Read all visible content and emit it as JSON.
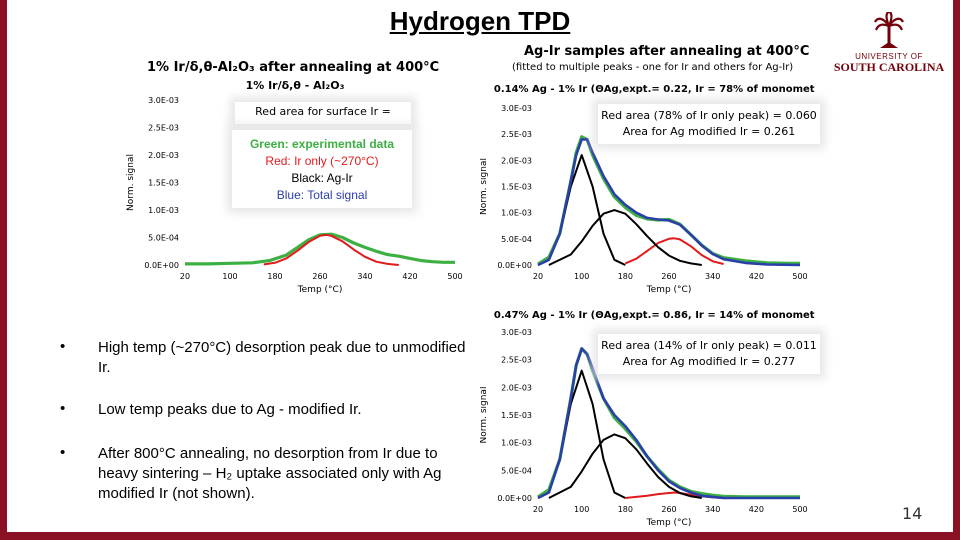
{
  "slide": {
    "title": "Hydrogen TPD",
    "page_number": "14",
    "logo": {
      "line1": "UNIVERSITY OF",
      "line2": "SOUTH CAROLINA",
      "accent": "#73000a"
    },
    "chart1_heading": "1% Ir/δ,θ-Al₂O₃ after annealing at 400°C",
    "right_heading": "Ag-Ir samples after annealing at 400°C",
    "right_subheading": "(fitted to multiple peaks - one for Ir and others for Ag-Ir)",
    "bullets": [
      "High temp (~270°C) desorption peak due to unmodified Ir.",
      "Low temp peaks due to Ag - modified Ir.",
      "After 800°C annealing, no desorption from Ir due to heavy sintering – H₂ uptake associated only with Ag modified Ir (not shown)."
    ],
    "bullet_symbol": "•"
  },
  "legend": {
    "lines": [
      "Green: experimental data",
      "Red: Ir only (~270°C)",
      "Black: Ag-Ir",
      "Blue: Total signal"
    ],
    "colors": [
      "#3cb043",
      "#e31a1c",
      "#000000",
      "#2b3fa8"
    ]
  },
  "chart_data": [
    {
      "type": "line",
      "title": "1% Ir/δ,θ - Al₂O₃",
      "annotation": "Red area for surface Ir =",
      "xlabel": "Temp (°C)",
      "ylabel": "Norm. signal",
      "xticks": [
        "20",
        "100",
        "180",
        "260",
        "340",
        "420",
        "500"
      ],
      "yticks": [
        "0.0E+00",
        "5.0E-04",
        "1.0E-03",
        "1.5E-03",
        "2.0E-03",
        "2.5E-03",
        "3.0E-03"
      ],
      "xlim": [
        20,
        500
      ],
      "ylim": [
        0,
        0.003
      ],
      "series": [
        {
          "name": "experimental",
          "color": "#3cb043",
          "x": [
            20,
            60,
            100,
            140,
            170,
            200,
            220,
            240,
            260,
            280,
            300,
            320,
            340,
            360,
            380,
            400,
            420,
            440,
            460,
            480,
            500
          ],
          "y": [
            2e-05,
            2e-05,
            3e-05,
            4e-05,
            8e-05,
            0.00018,
            0.00032,
            0.00046,
            0.00055,
            0.00056,
            0.0005,
            0.0004,
            0.00032,
            0.00025,
            0.00019,
            0.00016,
            0.00012,
            8e-05,
            6e-05,
            5e-05,
            5e-05
          ]
        },
        {
          "name": "Ir only",
          "color": "#e31a1c",
          "x": [
            160,
            180,
            200,
            220,
            240,
            260,
            270,
            280,
            300,
            320,
            340,
            360,
            380,
            400
          ],
          "y": [
            1e-05,
            4e-05,
            0.00012,
            0.00026,
            0.00042,
            0.00053,
            0.00055,
            0.00053,
            0.00043,
            0.00028,
            0.00015,
            6e-05,
            2e-05,
            0.0
          ]
        }
      ]
    },
    {
      "type": "line",
      "title": "0.14% Ag - 1% Ir (ΘAg,expt.= 0.22, Ir = 78% of monometallic)",
      "annotation": [
        "Red area (78% of Ir only peak) = 0.060",
        "Area for Ag modified Ir = 0.261"
      ],
      "xlabel": "Temp (°C)",
      "ylabel": "Norm. signal",
      "xticks": [
        "20",
        "100",
        "180",
        "260",
        "340",
        "420",
        "500"
      ],
      "yticks": [
        "0.0E+00",
        "5.0E-04",
        "1.0E-03",
        "1.5E-03",
        "2.0E-03",
        "2.5E-03",
        "3.0E-03"
      ],
      "xlim": [
        20,
        500
      ],
      "ylim": [
        0,
        0.003
      ],
      "series": [
        {
          "name": "experimental",
          "color": "#3cb043",
          "x": [
            20,
            40,
            60,
            80,
            90,
            100,
            110,
            120,
            140,
            160,
            180,
            200,
            220,
            240,
            260,
            280,
            300,
            320,
            340,
            360,
            400,
            440,
            480,
            500
          ],
          "y": [
            2e-05,
            0.00015,
            0.0006,
            0.0016,
            0.00215,
            0.00245,
            0.0024,
            0.0021,
            0.00165,
            0.0013,
            0.0011,
            0.00095,
            0.00088,
            0.00086,
            0.00087,
            0.00078,
            0.00058,
            0.00038,
            0.00022,
            0.00014,
            8e-05,
            4e-05,
            3e-05,
            3e-05
          ]
        },
        {
          "name": "Ir only",
          "color": "#e31a1c",
          "x": [
            180,
            200,
            220,
            240,
            260,
            270,
            280,
            300,
            320,
            340,
            360
          ],
          "y": [
            3e-05,
            0.00012,
            0.00027,
            0.00042,
            0.0005,
            0.00051,
            0.00049,
            0.00036,
            0.00019,
            7e-05,
            2e-05
          ]
        },
        {
          "name": "Ag-Ir 1",
          "color": "#000000",
          "x": [
            20,
            40,
            60,
            80,
            100,
            120,
            140,
            160,
            180
          ],
          "y": [
            0.0,
            0.0001,
            0.0006,
            0.0015,
            0.0021,
            0.0015,
            0.0006,
            0.0001,
            0.0
          ]
        },
        {
          "name": "Ag-Ir 2",
          "color": "#000000",
          "x": [
            40,
            80,
            100,
            120,
            140,
            160,
            180,
            200,
            220,
            240,
            260,
            280,
            300,
            320
          ],
          "y": [
            0.0,
            0.0002,
            0.00045,
            0.00075,
            0.00098,
            0.00105,
            0.00098,
            0.00078,
            0.00055,
            0.00034,
            0.00018,
            8e-05,
            3e-05,
            0.0
          ]
        },
        {
          "name": "Total",
          "color": "#2b3fa8",
          "x": [
            20,
            40,
            60,
            80,
            90,
            100,
            110,
            120,
            140,
            160,
            180,
            200,
            220,
            240,
            260,
            280,
            300,
            320,
            340,
            360,
            400,
            440,
            500
          ],
          "y": [
            0.0,
            0.0001,
            0.0006,
            0.0016,
            0.0021,
            0.0024,
            0.0024,
            0.00215,
            0.0017,
            0.00135,
            0.00115,
            0.001,
            0.0009,
            0.00087,
            0.00085,
            0.00077,
            0.00058,
            0.00037,
            0.00021,
            0.00011,
            4e-05,
            1e-05,
            0.0
          ]
        }
      ]
    },
    {
      "type": "line",
      "title": "0.47% Ag - 1% Ir (ΘAg,expt.= 0.86, Ir = 14% of monometallic)",
      "annotation": [
        "Red area (14% of Ir only peak) = 0.011",
        "Area for Ag modified Ir = 0.277"
      ],
      "xlabel": "Temp (°C)",
      "ylabel": "Norm. signal",
      "xticks": [
        "20",
        "100",
        "180",
        "260",
        "340",
        "420",
        "500"
      ],
      "yticks": [
        "0.0E+00",
        "5.0E-04",
        "1.0E-03",
        "1.5E-03",
        "2.0E-03",
        "2.5E-03",
        "3.0E-03"
      ],
      "xlim": [
        20,
        500
      ],
      "ylim": [
        0,
        0.003
      ],
      "series": [
        {
          "name": "experimental",
          "color": "#3cb043",
          "x": [
            20,
            40,
            60,
            80,
            90,
            100,
            110,
            120,
            140,
            160,
            180,
            200,
            220,
            240,
            260,
            280,
            300,
            320,
            340,
            360,
            400,
            440,
            500
          ],
          "y": [
            2e-05,
            0.00015,
            0.0007,
            0.0018,
            0.0024,
            0.0027,
            0.0026,
            0.0023,
            0.0018,
            0.00145,
            0.00125,
            0.00102,
            0.00075,
            0.00052,
            0.00032,
            0.0002,
            0.00012,
            8e-05,
            5e-05,
            3e-05,
            2e-05,
            2e-05,
            2e-05
          ]
        },
        {
          "name": "Ir only",
          "color": "#e31a1c",
          "x": [
            180,
            200,
            220,
            240,
            260,
            270,
            280,
            300,
            320,
            340,
            360
          ],
          "y": [
            0.0,
            2e-05,
            4e-05,
            7e-05,
            9e-05,
            0.0001,
            9e-05,
            6e-05,
            3e-05,
            1e-05,
            0.0
          ]
        },
        {
          "name": "Ag-Ir 1",
          "color": "#000000",
          "x": [
            20,
            40,
            60,
            80,
            100,
            120,
            140,
            160,
            180
          ],
          "y": [
            0.0,
            0.0001,
            0.0007,
            0.0017,
            0.0023,
            0.0017,
            0.0007,
            0.0001,
            0.0
          ]
        },
        {
          "name": "Ag-Ir 2",
          "color": "#000000",
          "x": [
            40,
            80,
            100,
            120,
            140,
            160,
            180,
            200,
            220,
            240,
            260,
            280,
            300,
            320
          ],
          "y": [
            0.0,
            0.0002,
            0.00048,
            0.0008,
            0.00105,
            0.00115,
            0.00108,
            0.00088,
            0.00062,
            0.00038,
            0.0002,
            9e-05,
            3e-05,
            0.0
          ]
        },
        {
          "name": "Total",
          "color": "#2b3fa8",
          "x": [
            20,
            40,
            60,
            80,
            90,
            100,
            110,
            120,
            140,
            160,
            180,
            200,
            220,
            240,
            260,
            280,
            300,
            320,
            340,
            360,
            400,
            500
          ],
          "y": [
            0.0,
            0.0001,
            0.0007,
            0.0018,
            0.0024,
            0.0027,
            0.0026,
            0.00235,
            0.0018,
            0.0015,
            0.0013,
            0.00105,
            0.00075,
            0.0005,
            0.0003,
            0.00018,
            0.0001,
            4e-05,
            2e-05,
            0.0,
            0.0,
            0.0
          ]
        }
      ]
    }
  ]
}
